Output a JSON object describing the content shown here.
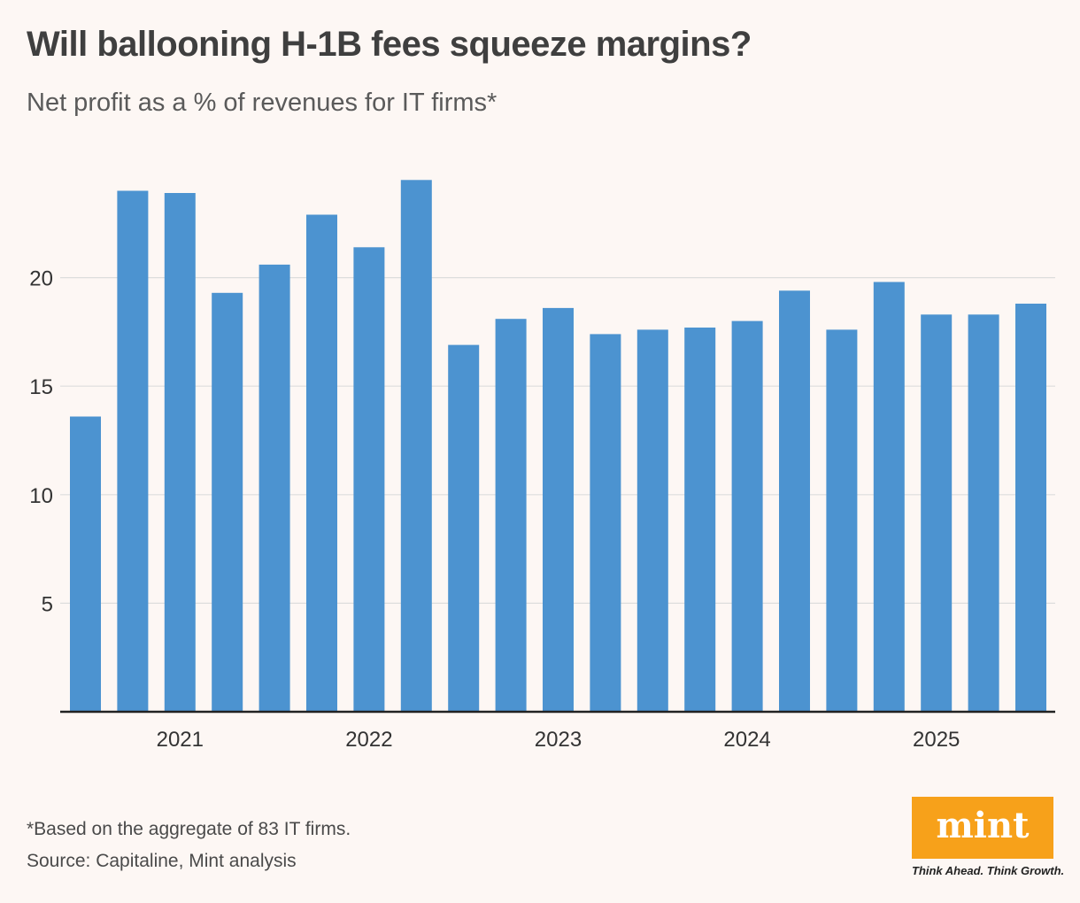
{
  "chart_data": {
    "type": "bar",
    "title": "Will ballooning H-1B fees squeeze margins?",
    "subtitle": "Net profit as a % of revenues for IT firms*",
    "xlabel": "",
    "ylabel": "",
    "ylim": [
      0,
      25.8
    ],
    "yticks": [
      5,
      10,
      15,
      20
    ],
    "grid": true,
    "legend": "none",
    "bar_color": "#4c93d0",
    "year_labels": [
      "2021",
      "2022",
      "2023",
      "2024",
      "2025"
    ],
    "year_label_after_bar_index": [
      2,
      6,
      10,
      14,
      18
    ],
    "values": [
      13.6,
      24.0,
      23.9,
      19.3,
      20.6,
      22.9,
      21.4,
      24.5,
      16.9,
      18.1,
      18.6,
      17.4,
      17.6,
      17.7,
      18.0,
      19.4,
      17.6,
      19.8,
      18.3,
      18.3,
      18.8
    ]
  },
  "footnote": "*Based on the aggregate of 83 IT firms.",
  "source": "Source: Capitaline, Mint analysis",
  "logo": {
    "word": "mint",
    "tagline": "Think Ahead. Think Growth.",
    "color": "#f7a11a"
  }
}
